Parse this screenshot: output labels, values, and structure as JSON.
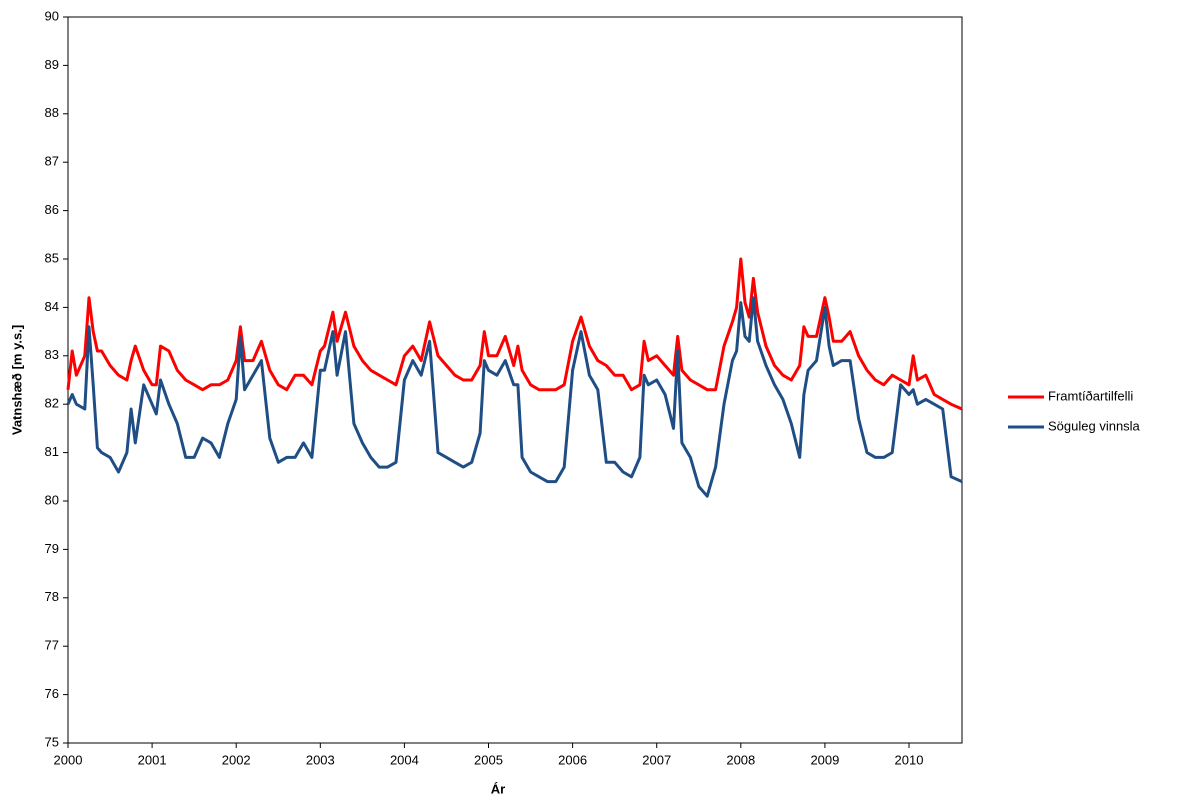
{
  "chart_data": {
    "type": "line",
    "x_label": "Ár",
    "y_label": "Vatnshæð [m y.s.]",
    "x": [
      2000.0,
      2000.05,
      2000.1,
      2000.2,
      2000.25,
      2000.3,
      2000.35,
      2000.4,
      2000.5,
      2000.6,
      2000.7,
      2000.75,
      2000.8,
      2000.9,
      2001.0,
      2001.05,
      2001.1,
      2001.2,
      2001.3,
      2001.4,
      2001.5,
      2001.6,
      2001.7,
      2001.8,
      2001.9,
      2002.0,
      2002.05,
      2002.1,
      2002.2,
      2002.3,
      2002.4,
      2002.5,
      2002.6,
      2002.7,
      2002.8,
      2002.9,
      2003.0,
      2003.05,
      2003.15,
      2003.2,
      2003.3,
      2003.4,
      2003.5,
      2003.6,
      2003.7,
      2003.8,
      2003.9,
      2004.0,
      2004.1,
      2004.2,
      2004.3,
      2004.4,
      2004.5,
      2004.6,
      2004.7,
      2004.8,
      2004.9,
      2004.95,
      2005.0,
      2005.1,
      2005.2,
      2005.3,
      2005.35,
      2005.4,
      2005.5,
      2005.6,
      2005.7,
      2005.8,
      2005.9,
      2006.0,
      2006.1,
      2006.2,
      2006.3,
      2006.4,
      2006.5,
      2006.6,
      2006.7,
      2006.8,
      2006.85,
      2006.9,
      2007.0,
      2007.1,
      2007.2,
      2007.25,
      2007.3,
      2007.4,
      2007.5,
      2007.6,
      2007.7,
      2007.8,
      2007.9,
      2007.95,
      2008.0,
      2008.05,
      2008.1,
      2008.15,
      2008.2,
      2008.3,
      2008.4,
      2008.5,
      2008.6,
      2008.7,
      2008.75,
      2008.8,
      2008.9,
      2009.0,
      2009.05,
      2009.1,
      2009.2,
      2009.3,
      2009.4,
      2009.5,
      2009.6,
      2009.7,
      2009.8,
      2009.9,
      2010.0,
      2010.05,
      2010.1,
      2010.2,
      2010.3,
      2010.4,
      2010.5,
      2010.63
    ],
    "series": [
      {
        "name": "Framtíðartilfelli",
        "color": "#ff0000",
        "values": [
          82.3,
          83.1,
          82.6,
          83.0,
          84.2,
          83.5,
          83.1,
          83.1,
          82.8,
          82.6,
          82.5,
          82.9,
          83.2,
          82.7,
          82.4,
          82.4,
          83.2,
          83.1,
          82.7,
          82.5,
          82.4,
          82.3,
          82.4,
          82.4,
          82.5,
          82.9,
          83.6,
          82.9,
          82.9,
          83.3,
          82.7,
          82.4,
          82.3,
          82.6,
          82.6,
          82.4,
          83.1,
          83.2,
          83.9,
          83.3,
          83.9,
          83.2,
          82.9,
          82.7,
          82.6,
          82.5,
          82.4,
          83.0,
          83.2,
          82.9,
          83.7,
          83.0,
          82.8,
          82.6,
          82.5,
          82.5,
          82.8,
          83.5,
          83.0,
          83.0,
          83.4,
          82.8,
          83.2,
          82.7,
          82.4,
          82.3,
          82.3,
          82.3,
          82.4,
          83.3,
          83.8,
          83.2,
          82.9,
          82.8,
          82.6,
          82.6,
          82.3,
          82.4,
          83.3,
          82.9,
          83.0,
          82.8,
          82.6,
          83.4,
          82.7,
          82.5,
          82.4,
          82.3,
          82.3,
          83.2,
          83.7,
          84.0,
          85.0,
          84.1,
          83.8,
          84.6,
          83.9,
          83.2,
          82.8,
          82.6,
          82.5,
          82.8,
          83.6,
          83.4,
          83.4,
          84.2,
          83.8,
          83.3,
          83.3,
          83.5,
          83.0,
          82.7,
          82.5,
          82.4,
          82.6,
          82.5,
          82.4,
          83.0,
          82.5,
          82.6,
          82.2,
          82.1,
          82.0,
          81.9
        ]
      },
      {
        "name": "Söguleg vinnsla",
        "color": "#1f4e85",
        "values": [
          82.0,
          82.2,
          82.0,
          81.9,
          83.6,
          82.4,
          81.1,
          81.0,
          80.9,
          80.6,
          81.0,
          81.9,
          81.2,
          82.4,
          82.0,
          81.8,
          82.5,
          82.0,
          81.6,
          80.9,
          80.9,
          81.3,
          81.2,
          80.9,
          81.6,
          82.1,
          83.4,
          82.3,
          82.6,
          82.9,
          81.3,
          80.8,
          80.9,
          80.9,
          81.2,
          80.9,
          82.7,
          82.7,
          83.5,
          82.6,
          83.5,
          81.6,
          81.2,
          80.9,
          80.7,
          80.7,
          80.8,
          82.5,
          82.9,
          82.6,
          83.3,
          81.0,
          80.9,
          80.8,
          80.7,
          80.8,
          81.4,
          82.9,
          82.7,
          82.6,
          82.9,
          82.4,
          82.4,
          80.9,
          80.6,
          80.5,
          80.4,
          80.4,
          80.7,
          82.7,
          83.5,
          82.6,
          82.3,
          80.8,
          80.8,
          80.6,
          80.5,
          80.9,
          82.6,
          82.4,
          82.5,
          82.2,
          81.5,
          83.1,
          81.2,
          80.9,
          80.3,
          80.1,
          80.7,
          82.0,
          82.9,
          83.1,
          84.1,
          83.4,
          83.3,
          84.2,
          83.3,
          82.8,
          82.4,
          82.1,
          81.6,
          80.9,
          82.2,
          82.7,
          82.9,
          84.0,
          83.2,
          82.8,
          82.9,
          82.9,
          81.7,
          81.0,
          80.9,
          80.9,
          81.0,
          82.4,
          82.2,
          82.3,
          82.0,
          82.1,
          82.0,
          81.9,
          80.5,
          80.4
        ]
      }
    ],
    "xlim": [
      2000,
      2010.63
    ],
    "xticks": [
      2000,
      2001,
      2002,
      2003,
      2004,
      2005,
      2006,
      2007,
      2008,
      2009,
      2010
    ],
    "ylim": [
      75,
      90
    ],
    "yticks": [
      75,
      76,
      77,
      78,
      79,
      80,
      81,
      82,
      83,
      84,
      85,
      86,
      87,
      88,
      89,
      90
    ],
    "legend": "right"
  }
}
